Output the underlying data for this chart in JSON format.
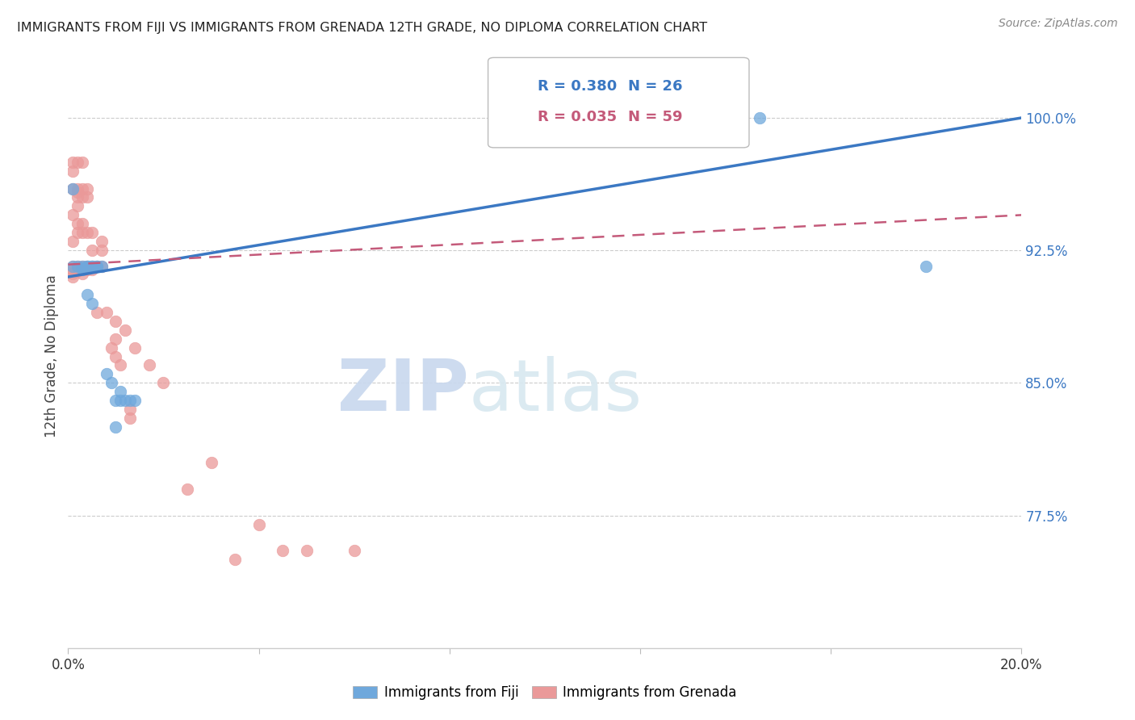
{
  "title": "IMMIGRANTS FROM FIJI VS IMMIGRANTS FROM GRENADA 12TH GRADE, NO DIPLOMA CORRELATION CHART",
  "source": "Source: ZipAtlas.com",
  "ylabel": "12th Grade, No Diploma",
  "ytick_labels": [
    "100.0%",
    "92.5%",
    "85.0%",
    "77.5%"
  ],
  "ytick_values": [
    1.0,
    0.925,
    0.85,
    0.775
  ],
  "xlim": [
    0.0,
    0.2
  ],
  "ylim": [
    0.7,
    1.03
  ],
  "fiji_color": "#6fa8dc",
  "grenada_color": "#ea9999",
  "fiji_R": 0.38,
  "fiji_N": 26,
  "grenada_R": 0.035,
  "grenada_N": 59,
  "fiji_line_x": [
    0.0,
    0.2
  ],
  "fiji_line_y": [
    0.91,
    1.0
  ],
  "grenada_line_x": [
    0.0,
    0.2
  ],
  "grenada_line_y": [
    0.917,
    0.945
  ],
  "fiji_scatter_x": [
    0.001,
    0.001,
    0.002,
    0.003,
    0.003,
    0.004,
    0.004,
    0.005,
    0.005,
    0.006,
    0.007,
    0.008,
    0.009,
    0.01,
    0.01,
    0.011,
    0.011,
    0.012,
    0.013,
    0.014,
    0.003,
    0.004,
    0.005,
    0.006,
    0.145,
    0.18
  ],
  "fiji_scatter_y": [
    0.96,
    0.916,
    0.916,
    0.915,
    0.914,
    0.916,
    0.9,
    0.916,
    0.895,
    0.916,
    0.916,
    0.855,
    0.85,
    0.84,
    0.825,
    0.845,
    0.84,
    0.84,
    0.84,
    0.84,
    0.916,
    0.916,
    0.916,
    0.916,
    1.0,
    0.916
  ],
  "grenada_scatter_x": [
    0.001,
    0.001,
    0.001,
    0.001,
    0.001,
    0.001,
    0.001,
    0.002,
    0.002,
    0.002,
    0.002,
    0.002,
    0.002,
    0.002,
    0.002,
    0.003,
    0.003,
    0.003,
    0.003,
    0.003,
    0.003,
    0.003,
    0.004,
    0.004,
    0.004,
    0.004,
    0.004,
    0.005,
    0.005,
    0.005,
    0.005,
    0.006,
    0.006,
    0.007,
    0.007,
    0.007,
    0.008,
    0.009,
    0.01,
    0.01,
    0.01,
    0.011,
    0.012,
    0.013,
    0.013,
    0.014,
    0.017,
    0.02,
    0.025,
    0.03,
    0.035,
    0.04,
    0.045,
    0.05,
    0.06,
    0.001,
    0.001,
    0.002,
    0.003
  ],
  "grenada_scatter_y": [
    0.916,
    0.914,
    0.912,
    0.91,
    0.93,
    0.945,
    0.96,
    0.916,
    0.913,
    0.96,
    0.958,
    0.955,
    0.95,
    0.94,
    0.935,
    0.916,
    0.914,
    0.912,
    0.96,
    0.955,
    0.94,
    0.935,
    0.916,
    0.935,
    0.955,
    0.96,
    0.914,
    0.935,
    0.925,
    0.916,
    0.914,
    0.916,
    0.89,
    0.93,
    0.925,
    0.916,
    0.89,
    0.87,
    0.885,
    0.875,
    0.865,
    0.86,
    0.88,
    0.835,
    0.83,
    0.87,
    0.86,
    0.85,
    0.79,
    0.805,
    0.75,
    0.77,
    0.755,
    0.755,
    0.755,
    0.97,
    0.975,
    0.975,
    0.975
  ],
  "watermark_zip": "ZIP",
  "watermark_atlas": "atlas",
  "legend_fiji_label": "Immigrants from Fiji",
  "legend_grenada_label": "Immigrants from Grenada"
}
